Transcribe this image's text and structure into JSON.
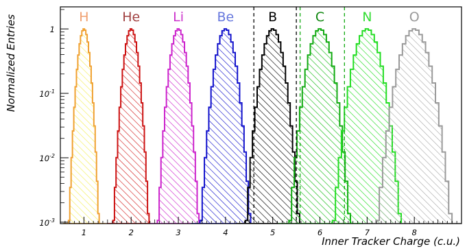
{
  "chart_data": {
    "type": "area",
    "xlabel": "Inner Tracker Charge (c.u.)",
    "ylabel": "Normalized Entries",
    "xlim": [
      0.5,
      9.0
    ],
    "ylim": [
      0.00095,
      2.2
    ],
    "y_scale": "log",
    "x_ticks": [
      1,
      2,
      3,
      4,
      5,
      6,
      7,
      8
    ],
    "y_ticks": [
      {
        "value": 1,
        "base": "1",
        "exp": ""
      },
      {
        "value": 0.1,
        "base": "10",
        "exp": "-1"
      },
      {
        "value": 0.01,
        "base": "10",
        "exp": "-2"
      },
      {
        "value": 0.001,
        "base": "10",
        "exp": "-3"
      }
    ],
    "series": [
      {
        "name": "H",
        "peak": 1.0,
        "sigma": 0.085,
        "color": "#f0a030",
        "fill": "#f3ef58"
      },
      {
        "name": "He",
        "peak": 2.0,
        "sigma": 0.1,
        "color": "#cc1111",
        "fill": "#d32020"
      },
      {
        "name": "Li",
        "peak": 3.0,
        "sigma": 0.115,
        "color": "#cc22cc",
        "fill": "#cc22cc"
      },
      {
        "name": "Be",
        "peak": 4.0,
        "sigma": 0.14,
        "color": "#1111cc",
        "fill": "#1111cc"
      },
      {
        "name": "B",
        "peak": 5.0,
        "sigma": 0.15,
        "color": "#000000",
        "fill": "#000000"
      },
      {
        "name": "C",
        "peak": 6.0,
        "sigma": 0.17,
        "color": "#11aa11",
        "fill": "#11bb11"
      },
      {
        "name": "N",
        "peak": 7.0,
        "sigma": 0.19,
        "color": "#22dd22",
        "fill": "#22dd22"
      },
      {
        "name": "O",
        "peak": 8.0,
        "sigma": 0.21,
        "color": "#999999",
        "fill": "#aaaaaa"
      }
    ],
    "label_colors": [
      "#f0a070",
      "#a04040",
      "#cc33cc",
      "#6677dd",
      "#000000",
      "#118811",
      "#33dd33",
      "#999999"
    ],
    "cut_lines": [
      {
        "x": 4.6,
        "color": "#000000"
      },
      {
        "x": 5.5,
        "color": "#000000"
      },
      {
        "x": 5.58,
        "color": "#11aa11"
      },
      {
        "x": 6.52,
        "color": "#11aa11"
      }
    ],
    "grid": false
  }
}
